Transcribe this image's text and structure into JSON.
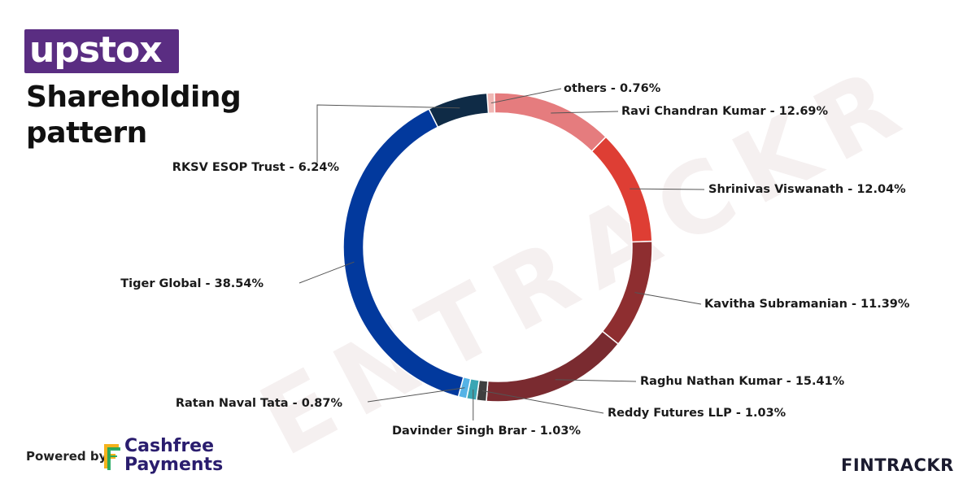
{
  "brand": {
    "logo_text": "upstox",
    "logo_color": "#5a2d82",
    "title": "Shareholding pattern",
    "powered_by": "Powered by",
    "partner": "Cashfree Payments",
    "partner_icon": "cashfree-logo-icon",
    "publisher": "FINTRACKR",
    "watermark": "ENTRACKR"
  },
  "chart_data": {
    "type": "pie",
    "donut": true,
    "title": "Shareholding pattern",
    "unit": "%",
    "slices": [
      {
        "label": "others",
        "value": 0.76,
        "display": "others - 0.76%",
        "color": "#f0b7b4"
      },
      {
        "label": "Ravi Chandran Kumar",
        "value": 12.69,
        "display": "Ravi Chandran Kumar - 12.69%",
        "color": "#e57c7e"
      },
      {
        "label": "Shrinivas Viswanath",
        "value": 12.04,
        "display": "Shrinivas Viswanath - 12.04%",
        "color": "#de3e34"
      },
      {
        "label": "Kavitha Subramanian",
        "value": 11.39,
        "display": "Kavitha Subramanian - 11.39%",
        "color": "#8e2e30"
      },
      {
        "label": "Raghu Nathan Kumar",
        "value": 15.41,
        "display": "Raghu Nathan Kumar - 15.41%",
        "color": "#7a2b30"
      },
      {
        "label": "Reddy Futures LLP",
        "value": 1.03,
        "display": "Reddy Futures LLP - 1.03%",
        "color": "#3f3f3f"
      },
      {
        "label": "Davinder Singh Brar",
        "value": 1.03,
        "display": "Davinder Singh Brar - 1.03%",
        "color": "#3aa6b4"
      },
      {
        "label": "Ratan Naval Tata",
        "value": 0.87,
        "display": "Ratan Naval Tata - 0.87%",
        "color": "#55b3e6"
      },
      {
        "label": "Tiger Global",
        "value": 38.54,
        "display": "Tiger Global - 38.54%",
        "color": "#02399d"
      },
      {
        "label": "RKSV ESOP Trust",
        "value": 6.24,
        "display": "RKSV ESOP Trust - 6.24%",
        "color": "#0f2b46"
      }
    ]
  }
}
